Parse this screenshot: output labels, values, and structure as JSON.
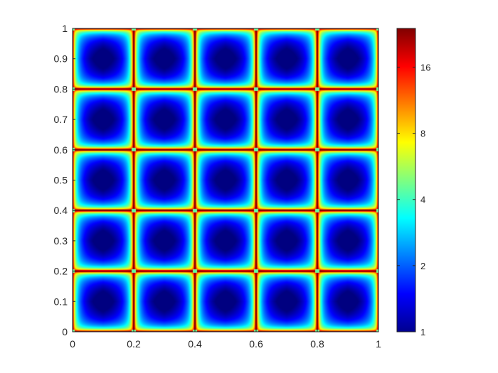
{
  "chart_data": {
    "type": "heatmap",
    "title": "",
    "xlabel": "",
    "ylabel": "",
    "xlim": [
      0,
      1
    ],
    "ylim": [
      0,
      1
    ],
    "x_ticks": [
      {
        "value": 0,
        "label": "0"
      },
      {
        "value": 0.2,
        "label": "0.2"
      },
      {
        "value": 0.4,
        "label": "0.4"
      },
      {
        "value": 0.6,
        "label": "0.6"
      },
      {
        "value": 0.8,
        "label": "0.8"
      },
      {
        "value": 1,
        "label": "1"
      }
    ],
    "y_ticks": [
      {
        "value": 0,
        "label": "0"
      },
      {
        "value": 0.1,
        "label": "0.1"
      },
      {
        "value": 0.2,
        "label": "0.2"
      },
      {
        "value": 0.3,
        "label": "0.3"
      },
      {
        "value": 0.4,
        "label": "0.4"
      },
      {
        "value": 0.5,
        "label": "0.5"
      },
      {
        "value": 0.6,
        "label": "0.6"
      },
      {
        "value": 0.7,
        "label": "0.7"
      },
      {
        "value": 0.8,
        "label": "0.8"
      },
      {
        "value": 0.9,
        "label": "0.9"
      },
      {
        "value": 1,
        "label": "1"
      }
    ],
    "grid": false,
    "colormap": "jet",
    "color_scale": "log",
    "clim": [
      1,
      24
    ],
    "colorbar": {
      "location": "right",
      "ticks": [
        {
          "value": 1,
          "label": "1"
        },
        {
          "value": 2,
          "label": "2"
        },
        {
          "value": 4,
          "label": "4"
        },
        {
          "value": 8,
          "label": "8"
        },
        {
          "value": 16,
          "label": "16"
        }
      ]
    },
    "field": {
      "periodic_cells": [
        5,
        5
      ],
      "cell_size": 0.2,
      "center_value": 1,
      "edge_value": 24,
      "corner_value": 4,
      "description_values": "minimum at each cell centre, saturated maximum along cell edges, lower values at cell corners"
    }
  }
}
